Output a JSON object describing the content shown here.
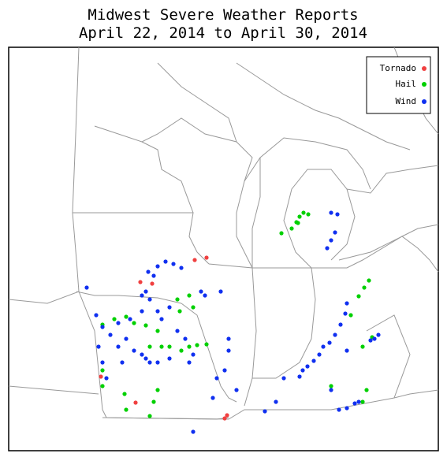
{
  "title": "Midwest Severe Weather Reports",
  "subtitle": "April 22, 2014 to April 30, 2014",
  "legend": [
    "Tornado",
    "Hail",
    "Wind"
  ]
}
